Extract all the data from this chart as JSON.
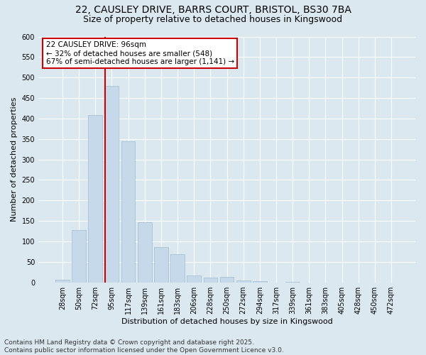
{
  "title_line1": "22, CAUSLEY DRIVE, BARRS COURT, BRISTOL, BS30 7BA",
  "title_line2": "Size of property relative to detached houses in Kingswood",
  "xlabel": "Distribution of detached houses by size in Kingswood",
  "ylabel": "Number of detached properties",
  "categories": [
    "28sqm",
    "50sqm",
    "72sqm",
    "95sqm",
    "117sqm",
    "139sqm",
    "161sqm",
    "183sqm",
    "206sqm",
    "228sqm",
    "250sqm",
    "272sqm",
    "294sqm",
    "317sqm",
    "339sqm",
    "361sqm",
    "383sqm",
    "405sqm",
    "428sqm",
    "450sqm",
    "472sqm"
  ],
  "values": [
    7,
    128,
    408,
    480,
    344,
    147,
    86,
    68,
    17,
    12,
    14,
    5,
    2,
    0,
    1,
    0,
    0,
    0,
    0,
    0,
    0
  ],
  "bar_color": "#c6d9ea",
  "bar_edgecolor": "#a0bcd0",
  "vline_color": "#cc0000",
  "vline_bar_index": 3,
  "ylim": [
    0,
    600
  ],
  "yticks": [
    0,
    50,
    100,
    150,
    200,
    250,
    300,
    350,
    400,
    450,
    500,
    550,
    600
  ],
  "annotation_text": "22 CAUSLEY DRIVE: 96sqm\n← 32% of detached houses are smaller (548)\n67% of semi-detached houses are larger (1,141) →",
  "annotation_box_facecolor": "#ffffff",
  "annotation_box_edgecolor": "#cc0000",
  "bg_color": "#dce8f0",
  "grid_color": "#ffffff",
  "footer_text": "Contains HM Land Registry data © Crown copyright and database right 2025.\nContains public sector information licensed under the Open Government Licence v3.0.",
  "title_fontsize": 10,
  "subtitle_fontsize": 9,
  "axis_label_fontsize": 8,
  "tick_fontsize": 7,
  "annotation_fontsize": 7.5,
  "footer_fontsize": 6.5
}
